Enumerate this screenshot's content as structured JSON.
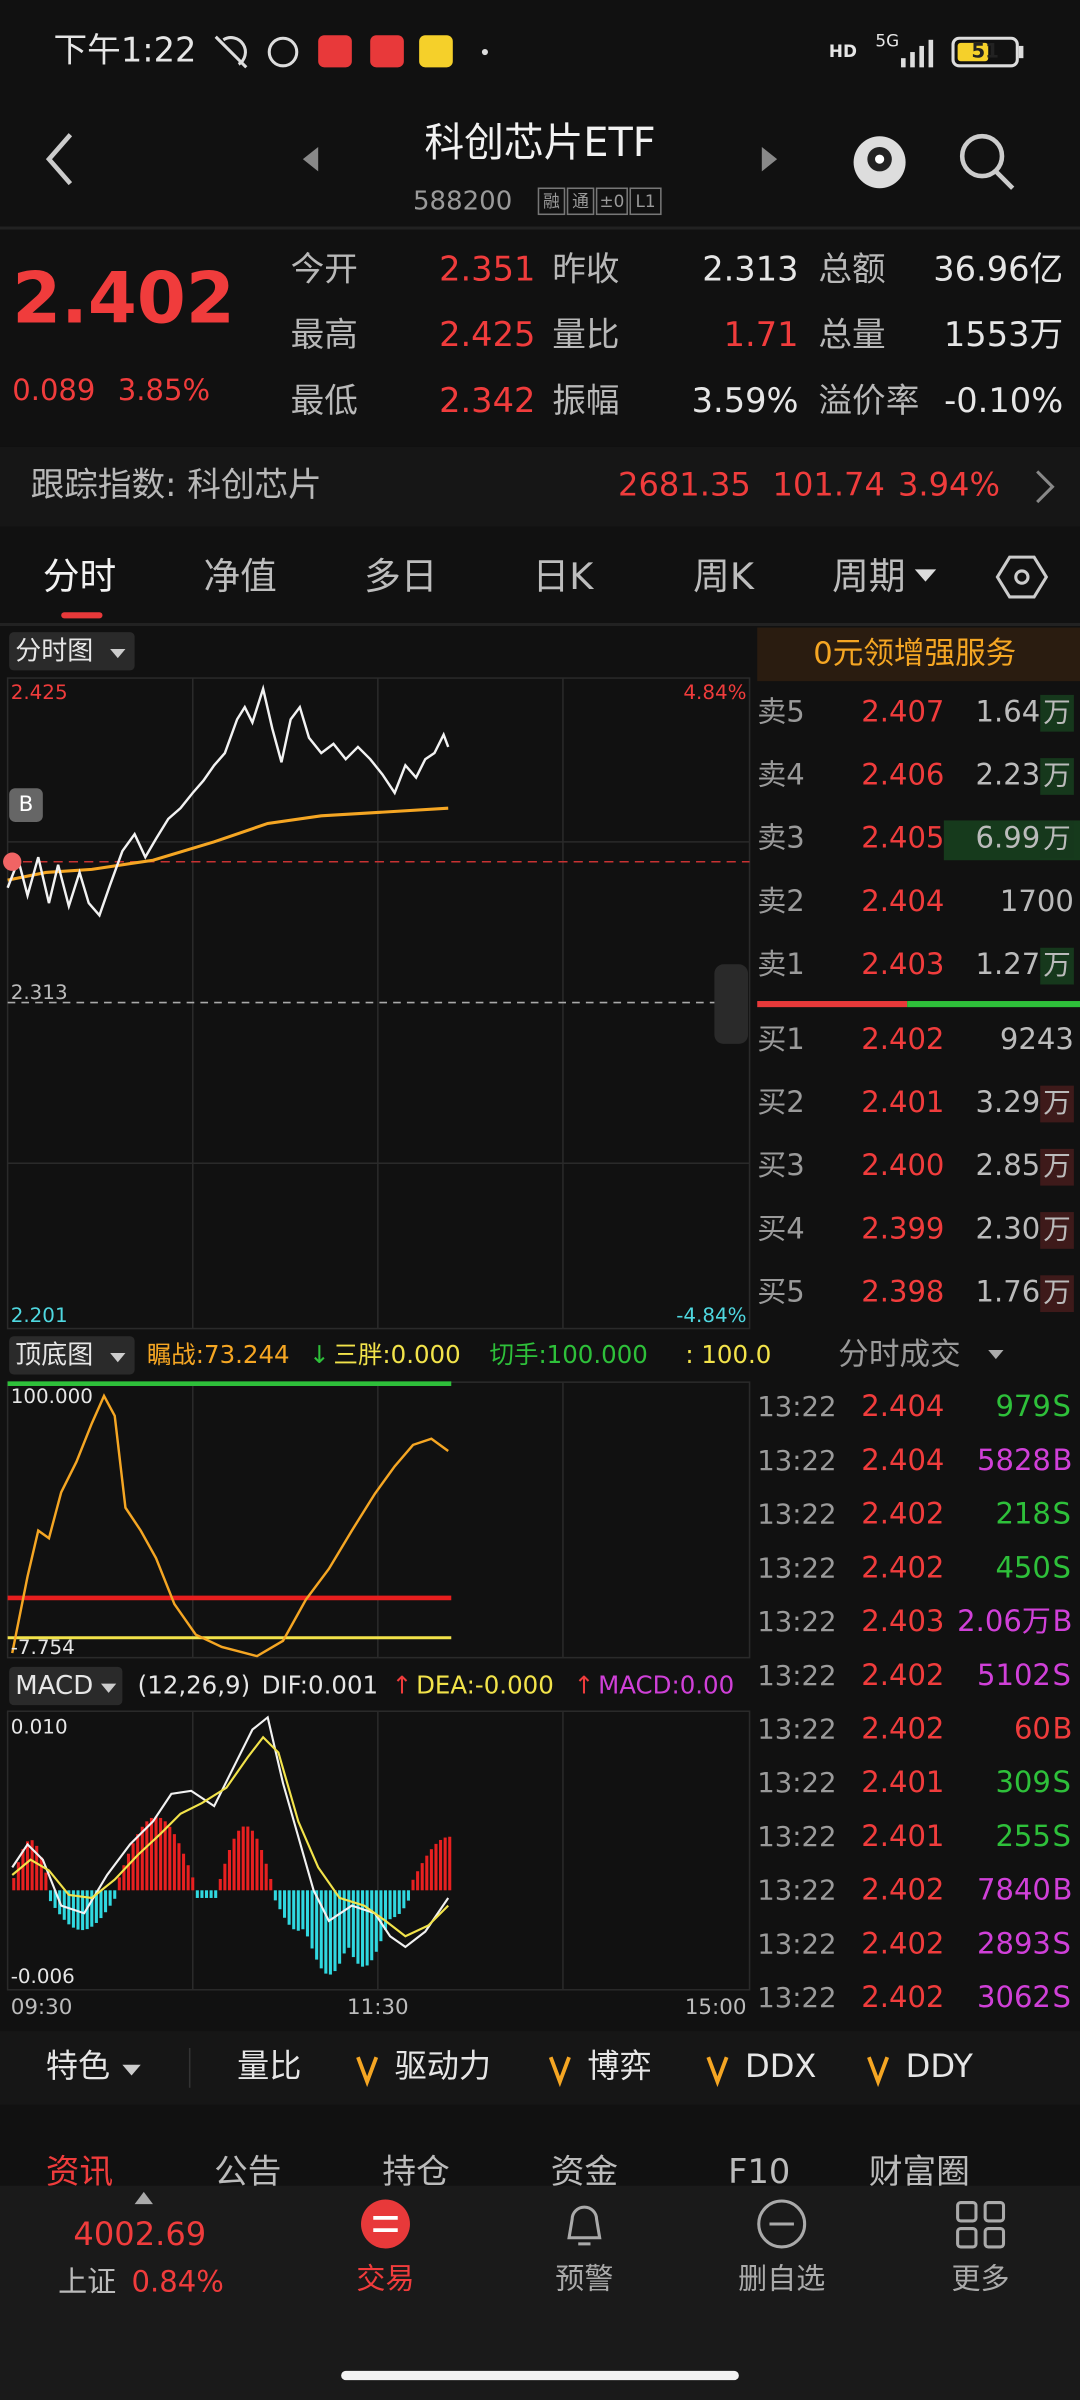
{
  "status_bar": {
    "time": "下午1:22",
    "hd": "HD",
    "network": "5G",
    "battery": "51"
  },
  "header": {
    "title": "科创芯片ETF",
    "code": "588200",
    "tags": [
      "融",
      "通",
      "±0",
      "L1"
    ]
  },
  "quote": {
    "price": "2.402",
    "change": "0.089",
    "change_pct": "3.85%",
    "fields": [
      {
        "label": "今开",
        "value": "2.351",
        "color": "#f03c3c"
      },
      {
        "label": "昨收",
        "value": "2.313",
        "color": "#e6e6e6"
      },
      {
        "label": "总额",
        "value": "36.96亿",
        "color": "#e6e6e6"
      },
      {
        "label": "最高",
        "value": "2.425",
        "color": "#f03c3c"
      },
      {
        "label": "量比",
        "value": "1.71",
        "color": "#f03c3c"
      },
      {
        "label": "总量",
        "value": "1553万",
        "color": "#e6e6e6"
      },
      {
        "label": "最低",
        "value": "2.342",
        "color": "#f03c3c"
      },
      {
        "label": "振幅",
        "value": "3.59%",
        "color": "#e6e6e6"
      },
      {
        "label": "溢价率",
        "value": "-0.10%",
        "color": "#e6e6e6"
      }
    ]
  },
  "tracking_index": {
    "label": "跟踪指数: 科创芯片",
    "value": "2681.35",
    "change": "101.74",
    "change_pct": "3.94%"
  },
  "tabs": [
    "分时",
    "净值",
    "多日",
    "日K",
    "周K",
    "周期"
  ],
  "intraday": {
    "label": "分时图",
    "high": "2.425",
    "high_pct": "4.84%",
    "prev_close": "2.313",
    "low": "2.201",
    "low_pct": "-4.84%",
    "marker": "B",
    "times": [
      "09:30",
      "11:30",
      "15:00"
    ]
  },
  "indicator": {
    "label": "顶底图",
    "top": "100.000",
    "bottom": "-7.754",
    "items": [
      {
        "text": "瞩战:73.244",
        "color": "#f5a623"
      },
      {
        "text": "↓",
        "color": "#2ec03a"
      },
      {
        "text": "三胖:0.000",
        "color": "#f2e34a"
      },
      {
        "text": "切手:100.000",
        "color": "#2ec03a"
      },
      {
        "text": ": 100.0",
        "color": "#f2e34a"
      }
    ]
  },
  "macd": {
    "label": "MACD",
    "top": "0.010",
    "bottom": "-0.006",
    "items": [
      {
        "text": "(12,26,9)",
        "color": "#e6e6e6"
      },
      {
        "text": "DIF:0.001",
        "color": "#e6e6e6"
      },
      {
        "text": "↑",
        "color": "#f03c3c"
      },
      {
        "text": "DEA:-0.000",
        "color": "#f2e34a"
      },
      {
        "text": "↑",
        "color": "#f03c3c"
      },
      {
        "text": "MACD:0.00",
        "color": "#d040d8"
      }
    ]
  },
  "promo": "0元领增强服务",
  "order_book": {
    "asks": [
      {
        "label": "卖5",
        "price": "2.407",
        "volume": "1.64",
        "unit": "万"
      },
      {
        "label": "卖4",
        "price": "2.406",
        "volume": "2.23",
        "unit": "万"
      },
      {
        "label": "卖3",
        "price": "2.405",
        "volume": "6.99",
        "unit": "万"
      },
      {
        "label": "卖2",
        "price": "2.404",
        "volume": "1700"
      },
      {
        "label": "卖1",
        "price": "2.403",
        "volume": "1.27",
        "unit": "万"
      }
    ],
    "bids": [
      {
        "label": "买1",
        "price": "2.402",
        "volume": "9243"
      },
      {
        "label": "买2",
        "price": "2.401",
        "volume": "3.29",
        "unit": "万"
      },
      {
        "label": "买3",
        "price": "2.400",
        "volume": "2.85",
        "unit": "万"
      },
      {
        "label": "买4",
        "price": "2.399",
        "volume": "2.30",
        "unit": "万"
      },
      {
        "label": "买5",
        "price": "2.398",
        "volume": "1.76",
        "unit": "万"
      }
    ]
  },
  "trades": {
    "label": "分时成交",
    "rows": [
      {
        "time": "13:22",
        "price": "2.404",
        "volume": "979",
        "side": "S",
        "color": "#2ec03a"
      },
      {
        "time": "13:22",
        "price": "2.404",
        "volume": "5828",
        "side": "B",
        "color": "#d040d8"
      },
      {
        "time": "13:22",
        "price": "2.402",
        "volume": "218",
        "side": "S",
        "color": "#2ec03a"
      },
      {
        "time": "13:22",
        "price": "2.402",
        "volume": "450",
        "side": "S",
        "color": "#2ec03a"
      },
      {
        "time": "13:22",
        "price": "2.403",
        "volume": "2.06万",
        "side": "B",
        "color": "#d040d8"
      },
      {
        "time": "13:22",
        "price": "2.402",
        "volume": "5102",
        "side": "S",
        "color": "#d040d8"
      },
      {
        "time": "13:22",
        "price": "2.402",
        "volume": "60",
        "side": "B",
        "color": "#f03c3c"
      },
      {
        "time": "13:22",
        "price": "2.401",
        "volume": "309",
        "side": "S",
        "color": "#2ec03a"
      },
      {
        "time": "13:22",
        "price": "2.401",
        "volume": "255",
        "side": "S",
        "color": "#2ec03a"
      },
      {
        "time": "13:22",
        "price": "2.402",
        "volume": "7840",
        "side": "B",
        "color": "#d040d8"
      },
      {
        "time": "13:22",
        "price": "2.402",
        "volume": "2893",
        "side": "S",
        "color": "#d040d8"
      },
      {
        "time": "13:22",
        "price": "2.402",
        "volume": "3062",
        "side": "S",
        "color": "#d040d8"
      }
    ]
  },
  "toolbar": {
    "label": "特色",
    "items": [
      "量比",
      "驱动力",
      "博弈",
      "DDX",
      "DDY"
    ]
  },
  "news_tabs": [
    "资讯",
    "公告",
    "持仓",
    "资金",
    "F10",
    "财富圈"
  ],
  "market_index": {
    "value": "4002.69",
    "name": "上证",
    "change_pct": "0.84%"
  },
  "nav": [
    "交易",
    "预警",
    "删自选",
    "更多"
  ]
}
